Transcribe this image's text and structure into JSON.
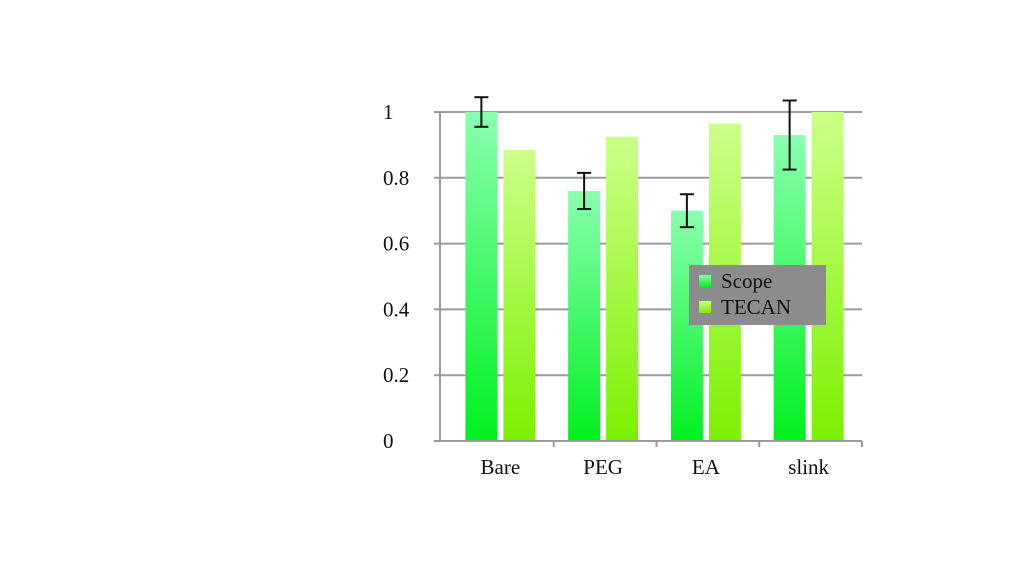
{
  "chart_data": {
    "type": "bar",
    "title": "",
    "xlabel": "",
    "ylabel": "",
    "categories": [
      "Bare",
      "PEG",
      "EA",
      "slink"
    ],
    "series": [
      {
        "name": "Scope",
        "values": [
          1.0,
          0.76,
          0.7,
          0.93
        ],
        "errors": [
          0.045,
          0.055,
          0.05,
          0.105
        ],
        "color_top": "#8affb0",
        "color_bottom": "#00f020"
      },
      {
        "name": "TECAN",
        "values": [
          0.885,
          0.925,
          0.965,
          1.0
        ],
        "color_top": "#ccff88",
        "color_bottom": "#7cf000"
      }
    ],
    "ylim": [
      0,
      1
    ],
    "yticks": [
      0,
      0.2,
      0.4,
      0.6,
      0.8,
      1
    ],
    "ytick_labels": [
      "0",
      "0.2",
      "0.4",
      "0.6",
      "0.8",
      "1"
    ],
    "grid": true,
    "legend": {
      "position": "center-right",
      "background": "#8c8c8c"
    }
  }
}
